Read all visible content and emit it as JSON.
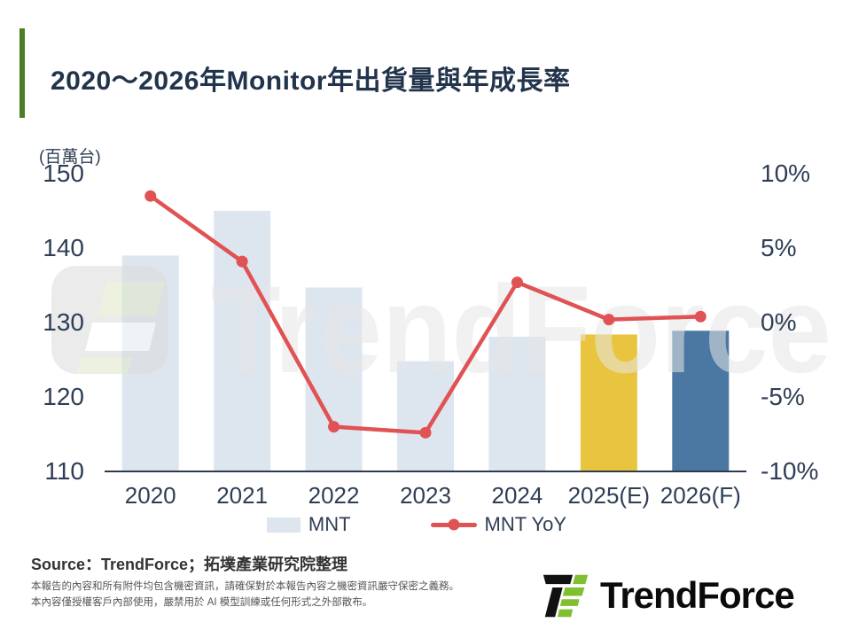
{
  "header": {
    "title": "2020～2026年Monitor年出貨量與年成長率"
  },
  "chart_data": {
    "type": "bar",
    "title": "2020～2026年Monitor年出貨量與年成長率",
    "categories": [
      "2020",
      "2021",
      "2022",
      "2023",
      "2024",
      "2025(E)",
      "2026(F)"
    ],
    "series": [
      {
        "name": "MNT",
        "type": "bar",
        "axis": "left",
        "unit": "million units",
        "values": [
          139.0,
          145.0,
          134.7,
          124.8,
          128.1,
          128.4,
          128.9
        ]
      },
      {
        "name": "MNT YoY",
        "type": "line",
        "axis": "right",
        "unit": "%",
        "values": [
          8.5,
          4.1,
          -7.0,
          -7.4,
          2.7,
          0.2,
          0.4
        ]
      }
    ],
    "unit_label": "(百萬台)",
    "left_axis": {
      "min": 110,
      "max": 150,
      "ticks": [
        150,
        140,
        130,
        120,
        110
      ]
    },
    "right_axis": {
      "min": -10,
      "max": 10,
      "ticks": [
        10,
        5,
        0,
        -5,
        -10
      ],
      "suffix": "%"
    },
    "bar_colors": [
      "#dde5ef",
      "#dde5ef",
      "#dde5ef",
      "#dde5ef",
      "#dde5ef",
      "#e9c53f",
      "#4b77a3"
    ],
    "line_color": "#e05253",
    "axis_line_color": "#2e3b4e",
    "grid": false,
    "legend_position": "bottom",
    "legend": [
      {
        "label": "MNT",
        "swatch": "#dde5ef",
        "type": "bar"
      },
      {
        "label": "MNT YoY",
        "swatch": "#e05253",
        "type": "line"
      }
    ]
  },
  "watermark": {
    "text": "TrendForce"
  },
  "footer": {
    "source": "Source：TrendForce；拓墣產業研究院整理",
    "disclaimer_line1": "本報告的內容和所有附件均包含機密資訊，請確保對於本報告內容之機密資訊嚴守保密之義務。",
    "disclaimer_line2": "本內容僅授權客戶內部使用，嚴禁用於 AI 模型訓練或任何形式之外部散布。",
    "logo_text": "TrendForce"
  },
  "colors": {
    "accent_green": "#4a7f26",
    "title_navy": "#22344c",
    "logo_green": "#80bf2f",
    "logo_black": "#111111"
  }
}
